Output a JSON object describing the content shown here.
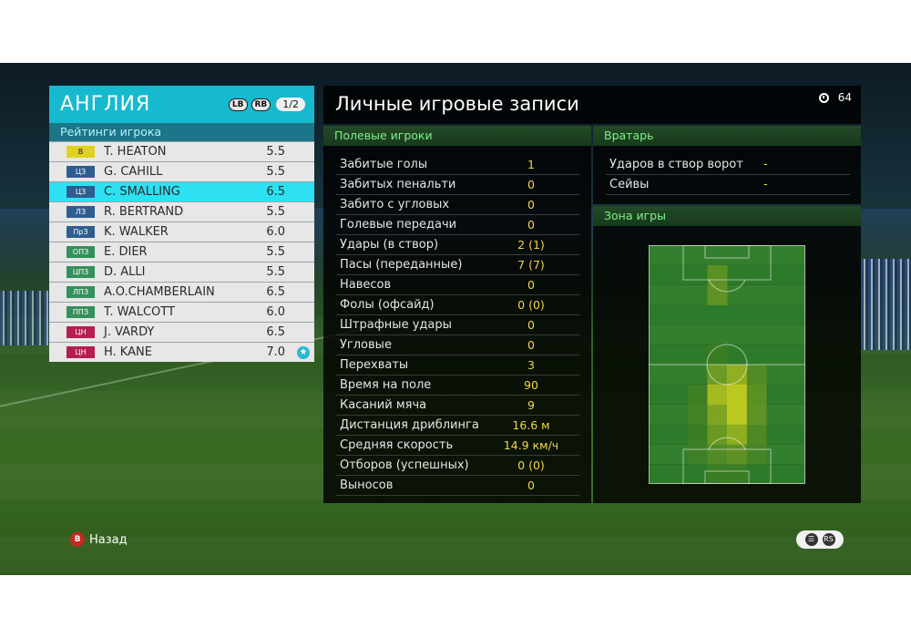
{
  "team": {
    "name": "АНГЛИЯ",
    "lb_label": "LB",
    "rb_label": "RB",
    "page": "1/2"
  },
  "ratings_title": "Рейтинги игрока",
  "players": [
    {
      "pos": "В",
      "name": "T. HEATON",
      "rating": "5.5",
      "group": "gk"
    },
    {
      "pos": "ЦЗ",
      "name": "G. CAHILL",
      "rating": "5.5",
      "group": "def"
    },
    {
      "pos": "ЦЗ",
      "name": "C. SMALLING",
      "rating": "6.5",
      "group": "def",
      "selected": true
    },
    {
      "pos": "ЛЗ",
      "name": "R. BERTRAND",
      "rating": "5.5",
      "group": "def"
    },
    {
      "pos": "ПрЗ",
      "name": "K. WALKER",
      "rating": "6.0",
      "group": "def"
    },
    {
      "pos": "ОПЗ",
      "name": "E. DIER",
      "rating": "5.5",
      "group": "mid"
    },
    {
      "pos": "ЦПЗ",
      "name": "D. ALLI",
      "rating": "5.5",
      "group": "mid"
    },
    {
      "pos": "ЛПЗ",
      "name": "A.O.CHAMBERLAIN",
      "rating": "6.5",
      "group": "mid"
    },
    {
      "pos": "ППЗ",
      "name": "T. WALCOTT",
      "rating": "6.0",
      "group": "mid"
    },
    {
      "pos": "ЦН",
      "name": "J. VARDY",
      "rating": "6.5",
      "group": "fwd"
    },
    {
      "pos": "ЦН",
      "name": "H. KANE",
      "rating": "7.0",
      "group": "fwd",
      "star": true
    }
  ],
  "records_title": "Личные игровые записи",
  "timer": "64",
  "field_section": {
    "title": "Полевые игроки",
    "stats": [
      {
        "label": "Забитые голы",
        "value": "1"
      },
      {
        "label": "Забитых пенальти",
        "value": "0"
      },
      {
        "label": "Забито с угловых",
        "value": "0"
      },
      {
        "label": "Голевые передачи",
        "value": "0"
      },
      {
        "label": "Удары (в створ)",
        "value": "2 (1)"
      },
      {
        "label": "Пасы (переданные)",
        "value": "7 (7)"
      },
      {
        "label": "Навесов",
        "value": "0"
      },
      {
        "label": "Фолы (офсайд)",
        "value": "0 (0)"
      },
      {
        "label": "Штрафные удары",
        "value": "0"
      },
      {
        "label": "Угловые",
        "value": "0"
      },
      {
        "label": "Перехваты",
        "value": "3"
      },
      {
        "label": "Время на поле",
        "value": "90"
      },
      {
        "label": "Касаний мяча",
        "value": "9"
      },
      {
        "label": "Дистанция дриблинга",
        "value": "16.6 м"
      },
      {
        "label": "Средняя скорость",
        "value": "14.9 км/ч"
      },
      {
        "label": "Отборов (успешных)",
        "value": "0 (0)"
      },
      {
        "label": "Выносов",
        "value": "0"
      }
    ]
  },
  "gk_section": {
    "title": "Вратарь",
    "stats": [
      {
        "label": "Ударов в створ ворот",
        "value": "-"
      },
      {
        "label": "Сейвы",
        "value": "-"
      }
    ]
  },
  "zone_section": {
    "title": "Зона игры",
    "heatmap": {
      "cols": 8,
      "rows": 12,
      "intensity": [
        [
          0,
          0,
          0,
          0,
          0,
          0,
          0,
          0
        ],
        [
          0,
          0,
          0,
          0.4,
          0,
          0,
          0,
          0
        ],
        [
          0,
          0,
          0,
          0.4,
          0,
          0,
          0,
          0
        ],
        [
          0,
          0,
          0,
          0,
          0,
          0,
          0,
          0
        ],
        [
          0,
          0,
          0,
          0,
          0,
          0,
          0,
          0
        ],
        [
          0,
          0,
          0,
          0.1,
          0,
          0,
          0,
          0
        ],
        [
          0,
          0,
          0,
          0.5,
          0.7,
          0.3,
          0,
          0
        ],
        [
          0,
          0,
          0.15,
          0.8,
          0.9,
          0.4,
          0,
          0
        ],
        [
          0,
          0,
          0.15,
          0.6,
          0.9,
          0.4,
          0,
          0
        ],
        [
          0,
          0,
          0.1,
          0.5,
          0.7,
          0.3,
          0,
          0
        ],
        [
          0,
          0,
          0.1,
          0.3,
          0.4,
          0.2,
          0,
          0
        ],
        [
          0,
          0,
          0,
          0.1,
          0.1,
          0,
          0,
          0
        ]
      ]
    }
  },
  "footer": {
    "back_label": "Назад",
    "b_label": "B",
    "rs_label": "RS"
  },
  "colors": {
    "accent": "#17b9cf",
    "selected": "#2de1f3",
    "value": "#f2d64b",
    "section": "#7ff08a"
  }
}
